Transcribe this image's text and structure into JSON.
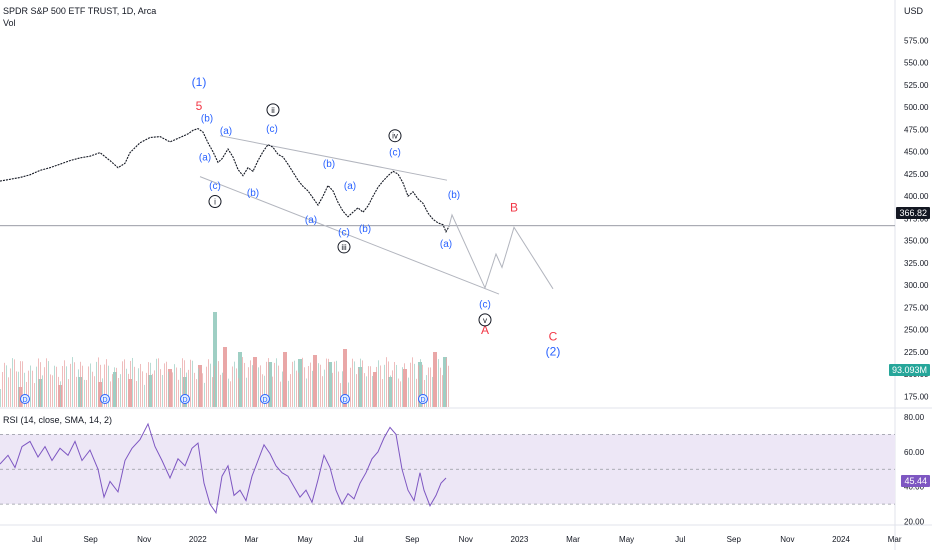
{
  "header": {
    "symbol": "SPDR S&P 500 ETF TRUST, 1D, Arca",
    "volume_label": "Vol",
    "currency": "USD",
    "rsi_label": "RSI (14, close, SMA, 14, 2)"
  },
  "colors": {
    "price": "#131722",
    "volume_up": "#e9a7a7",
    "volume_down": "#9fcfc4",
    "wave_blue": "#2962ff",
    "wave_red": "#f23645",
    "rsi_line": "#7e57c2",
    "rsi_band": "#ede7f6",
    "projection": "#b2b5be",
    "channel": "#b2b5be",
    "badge_price": "#131722",
    "badge_vol": "#26a69a",
    "badge_rsi": "#7e57c2"
  },
  "chart_data": {
    "type": "line",
    "title": "SPDR S&P 500 ETF TRUST, 1D, Arca",
    "price_axis": {
      "ticks": [
        175,
        200,
        225,
        250,
        275,
        300,
        325,
        350,
        375,
        400,
        425,
        450,
        475,
        500,
        525,
        550,
        575
      ],
      "range": [
        162,
        598
      ]
    },
    "x_ticks": [
      "Jul",
      "Sep",
      "Nov",
      "2022",
      "Mar",
      "May",
      "Jul",
      "Sep",
      "Nov",
      "2023",
      "Mar",
      "May",
      "Jul",
      "Sep",
      "Nov",
      "2024",
      "Mar"
    ],
    "last_price": "366.82",
    "last_volume": "93.093M",
    "rsi_axis": {
      "ticks": [
        20,
        40,
        60,
        80
      ],
      "range": [
        18,
        84
      ],
      "upper_band": 70,
      "lower_band": 30,
      "mid": 50
    },
    "last_rsi": "45.44",
    "price_series": [
      {
        "x": 0,
        "y": 417
      },
      {
        "x": 10,
        "y": 419
      },
      {
        "x": 20,
        "y": 421
      },
      {
        "x": 30,
        "y": 424
      },
      {
        "x": 40,
        "y": 429
      },
      {
        "x": 50,
        "y": 432
      },
      {
        "x": 60,
        "y": 436
      },
      {
        "x": 70,
        "y": 440
      },
      {
        "x": 80,
        "y": 443
      },
      {
        "x": 90,
        "y": 445
      },
      {
        "x": 100,
        "y": 449
      },
      {
        "x": 110,
        "y": 440
      },
      {
        "x": 118,
        "y": 432
      },
      {
        "x": 125,
        "y": 437
      },
      {
        "x": 130,
        "y": 449
      },
      {
        "x": 140,
        "y": 460
      },
      {
        "x": 150,
        "y": 466
      },
      {
        "x": 160,
        "y": 467
      },
      {
        "x": 170,
        "y": 461
      },
      {
        "x": 180,
        "y": 466
      },
      {
        "x": 188,
        "y": 470
      },
      {
        "x": 193,
        "y": 474
      },
      {
        "x": 198,
        "y": 476
      },
      {
        "x": 203,
        "y": 472
      },
      {
        "x": 208,
        "y": 460
      },
      {
        "x": 213,
        "y": 450
      },
      {
        "x": 218,
        "y": 438
      },
      {
        "x": 222,
        "y": 442
      },
      {
        "x": 228,
        "y": 453
      },
      {
        "x": 233,
        "y": 444
      },
      {
        "x": 238,
        "y": 430
      },
      {
        "x": 243,
        "y": 423
      },
      {
        "x": 248,
        "y": 432
      },
      {
        "x": 253,
        "y": 428
      },
      {
        "x": 258,
        "y": 440
      },
      {
        "x": 263,
        "y": 450
      },
      {
        "x": 268,
        "y": 458
      },
      {
        "x": 273,
        "y": 455
      },
      {
        "x": 278,
        "y": 447
      },
      {
        "x": 283,
        "y": 444
      },
      {
        "x": 288,
        "y": 436
      },
      {
        "x": 293,
        "y": 427
      },
      {
        "x": 298,
        "y": 418
      },
      {
        "x": 303,
        "y": 411
      },
      {
        "x": 308,
        "y": 406
      },
      {
        "x": 313,
        "y": 398
      },
      {
        "x": 318,
        "y": 390
      },
      {
        "x": 323,
        "y": 400
      },
      {
        "x": 328,
        "y": 412
      },
      {
        "x": 333,
        "y": 406
      },
      {
        "x": 338,
        "y": 393
      },
      {
        "x": 343,
        "y": 383
      },
      {
        "x": 348,
        "y": 377
      },
      {
        "x": 353,
        "y": 382
      },
      {
        "x": 358,
        "y": 387
      },
      {
        "x": 363,
        "y": 382
      },
      {
        "x": 368,
        "y": 389
      },
      {
        "x": 373,
        "y": 400
      },
      {
        "x": 378,
        "y": 410
      },
      {
        "x": 383,
        "y": 417
      },
      {
        "x": 388,
        "y": 423
      },
      {
        "x": 393,
        "y": 428
      },
      {
        "x": 398,
        "y": 425
      },
      {
        "x": 403,
        "y": 415
      },
      {
        "x": 408,
        "y": 400
      },
      {
        "x": 413,
        "y": 405
      },
      {
        "x": 418,
        "y": 397
      },
      {
        "x": 423,
        "y": 392
      },
      {
        "x": 428,
        "y": 381
      },
      {
        "x": 433,
        "y": 374
      },
      {
        "x": 438,
        "y": 370
      },
      {
        "x": 443,
        "y": 368
      },
      {
        "x": 446,
        "y": 360
      },
      {
        "x": 449,
        "y": 366
      }
    ],
    "projection_path": [
      {
        "x": 449,
        "y": 366
      },
      {
        "x": 452,
        "y": 379
      },
      {
        "x": 485,
        "y": 297
      },
      {
        "x": 496,
        "y": 335
      },
      {
        "x": 502,
        "y": 320
      },
      {
        "x": 514,
        "y": 365
      },
      {
        "x": 553,
        "y": 296
      }
    ],
    "channel_upper": [
      {
        "x": 220,
        "y": 468
      },
      {
        "x": 447,
        "y": 418
      }
    ],
    "channel_lower": [
      {
        "x": 200,
        "y": 422
      },
      {
        "x": 499,
        "y": 290
      }
    ],
    "current_price_line": 366.82,
    "rsi_series": [
      {
        "x": 0,
        "y": 53
      },
      {
        "x": 8,
        "y": 58
      },
      {
        "x": 15,
        "y": 51
      },
      {
        "x": 22,
        "y": 63
      },
      {
        "x": 30,
        "y": 66
      },
      {
        "x": 38,
        "y": 57
      },
      {
        "x": 45,
        "y": 63
      },
      {
        "x": 52,
        "y": 55
      },
      {
        "x": 60,
        "y": 62
      },
      {
        "x": 68,
        "y": 58
      },
      {
        "x": 75,
        "y": 66
      },
      {
        "x": 82,
        "y": 55
      },
      {
        "x": 90,
        "y": 61
      },
      {
        "x": 98,
        "y": 50
      },
      {
        "x": 104,
        "y": 34
      },
      {
        "x": 110,
        "y": 43
      },
      {
        "x": 118,
        "y": 37
      },
      {
        "x": 125,
        "y": 55
      },
      {
        "x": 132,
        "y": 62
      },
      {
        "x": 140,
        "y": 67
      },
      {
        "x": 148,
        "y": 76
      },
      {
        "x": 155,
        "y": 63
      },
      {
        "x": 162,
        "y": 55
      },
      {
        "x": 170,
        "y": 45
      },
      {
        "x": 178,
        "y": 56
      },
      {
        "x": 185,
        "y": 52
      },
      {
        "x": 192,
        "y": 62
      },
      {
        "x": 198,
        "y": 65
      },
      {
        "x": 204,
        "y": 42
      },
      {
        "x": 210,
        "y": 30
      },
      {
        "x": 216,
        "y": 25
      },
      {
        "x": 222,
        "y": 46
      },
      {
        "x": 228,
        "y": 52
      },
      {
        "x": 234,
        "y": 35
      },
      {
        "x": 240,
        "y": 38
      },
      {
        "x": 246,
        "y": 32
      },
      {
        "x": 252,
        "y": 46
      },
      {
        "x": 258,
        "y": 55
      },
      {
        "x": 264,
        "y": 64
      },
      {
        "x": 270,
        "y": 59
      },
      {
        "x": 276,
        "y": 52
      },
      {
        "x": 282,
        "y": 48
      },
      {
        "x": 288,
        "y": 46
      },
      {
        "x": 294,
        "y": 40
      },
      {
        "x": 300,
        "y": 34
      },
      {
        "x": 306,
        "y": 38
      },
      {
        "x": 312,
        "y": 31
      },
      {
        "x": 318,
        "y": 44
      },
      {
        "x": 324,
        "y": 58
      },
      {
        "x": 330,
        "y": 51
      },
      {
        "x": 336,
        "y": 38
      },
      {
        "x": 342,
        "y": 30
      },
      {
        "x": 348,
        "y": 36
      },
      {
        "x": 354,
        "y": 33
      },
      {
        "x": 360,
        "y": 42
      },
      {
        "x": 366,
        "y": 48
      },
      {
        "x": 372,
        "y": 56
      },
      {
        "x": 378,
        "y": 60
      },
      {
        "x": 384,
        "y": 68
      },
      {
        "x": 390,
        "y": 74
      },
      {
        "x": 396,
        "y": 70
      },
      {
        "x": 402,
        "y": 50
      },
      {
        "x": 408,
        "y": 38
      },
      {
        "x": 414,
        "y": 32
      },
      {
        "x": 420,
        "y": 48
      },
      {
        "x": 424,
        "y": 38
      },
      {
        "x": 430,
        "y": 29
      },
      {
        "x": 436,
        "y": 35
      },
      {
        "x": 441,
        "y": 42
      },
      {
        "x": 446,
        "y": 45
      }
    ],
    "volume_bars": [
      {
        "x": 20,
        "v": 0.2
      },
      {
        "x": 40,
        "v": 0.28
      },
      {
        "x": 60,
        "v": 0.22
      },
      {
        "x": 80,
        "v": 0.3
      },
      {
        "x": 100,
        "v": 0.25
      },
      {
        "x": 115,
        "v": 0.35
      },
      {
        "x": 130,
        "v": 0.28
      },
      {
        "x": 150,
        "v": 0.32
      },
      {
        "x": 170,
        "v": 0.38
      },
      {
        "x": 185,
        "v": 0.3
      },
      {
        "x": 200,
        "v": 0.42
      },
      {
        "x": 215,
        "v": 0.95
      },
      {
        "x": 225,
        "v": 0.6
      },
      {
        "x": 240,
        "v": 0.55
      },
      {
        "x": 255,
        "v": 0.5
      },
      {
        "x": 270,
        "v": 0.45
      },
      {
        "x": 285,
        "v": 0.55
      },
      {
        "x": 300,
        "v": 0.48
      },
      {
        "x": 315,
        "v": 0.52
      },
      {
        "x": 330,
        "v": 0.45
      },
      {
        "x": 345,
        "v": 0.58
      },
      {
        "x": 360,
        "v": 0.4
      },
      {
        "x": 375,
        "v": 0.35
      },
      {
        "x": 390,
        "v": 0.3
      },
      {
        "x": 405,
        "v": 0.38
      },
      {
        "x": 420,
        "v": 0.45
      },
      {
        "x": 435,
        "v": 0.55
      },
      {
        "x": 445,
        "v": 0.5
      }
    ],
    "wave_labels": [
      {
        "text": "(1)",
        "x": 199,
        "y": 524,
        "color": "blue"
      },
      {
        "text": "5",
        "x": 199,
        "y": 497,
        "color": "red"
      },
      {
        "text": "(b)",
        "x": 207,
        "y": 484,
        "color": "blue"
      },
      {
        "text": "(a)",
        "x": 226,
        "y": 470,
        "color": "blue"
      },
      {
        "text": "(a)",
        "x": 205,
        "y": 440,
        "color": "blue"
      },
      {
        "text": "(c)",
        "x": 215,
        "y": 408,
        "color": "blue"
      },
      {
        "text": "(b)",
        "x": 253,
        "y": 400,
        "color": "blue"
      },
      {
        "text": "(c)",
        "x": 272,
        "y": 472,
        "color": "blue"
      },
      {
        "text": "(b)",
        "x": 329,
        "y": 433,
        "color": "blue"
      },
      {
        "text": "(a)",
        "x": 350,
        "y": 408,
        "color": "blue"
      },
      {
        "text": "(a)",
        "x": 311,
        "y": 370,
        "color": "blue"
      },
      {
        "text": "(b)",
        "x": 365,
        "y": 360,
        "color": "blue"
      },
      {
        "text": "(c)",
        "x": 344,
        "y": 356,
        "color": "blue"
      },
      {
        "text": "(c)",
        "x": 395,
        "y": 446,
        "color": "blue"
      },
      {
        "text": "(b)",
        "x": 454,
        "y": 398,
        "color": "blue"
      },
      {
        "text": "(a)",
        "x": 446,
        "y": 343,
        "color": "blue"
      },
      {
        "text": "(c)",
        "x": 485,
        "y": 275,
        "color": "blue"
      },
      {
        "text": "A",
        "x": 485,
        "y": 245,
        "color": "red"
      },
      {
        "text": "B",
        "x": 514,
        "y": 383,
        "color": "red"
      },
      {
        "text": "C",
        "x": 553,
        "y": 238,
        "color": "red"
      },
      {
        "text": "(2)",
        "x": 553,
        "y": 221,
        "color": "blue"
      }
    ],
    "circled_labels": [
      {
        "text": "i",
        "x": 215,
        "y": 394
      },
      {
        "text": "ii",
        "x": 273,
        "y": 497
      },
      {
        "text": "iii",
        "x": 344,
        "y": 343
      },
      {
        "text": "iv",
        "x": 395,
        "y": 468
      },
      {
        "text": "v",
        "x": 485,
        "y": 261
      }
    ],
    "dividend_markers": [
      25,
      105,
      185,
      265,
      345,
      423
    ]
  }
}
